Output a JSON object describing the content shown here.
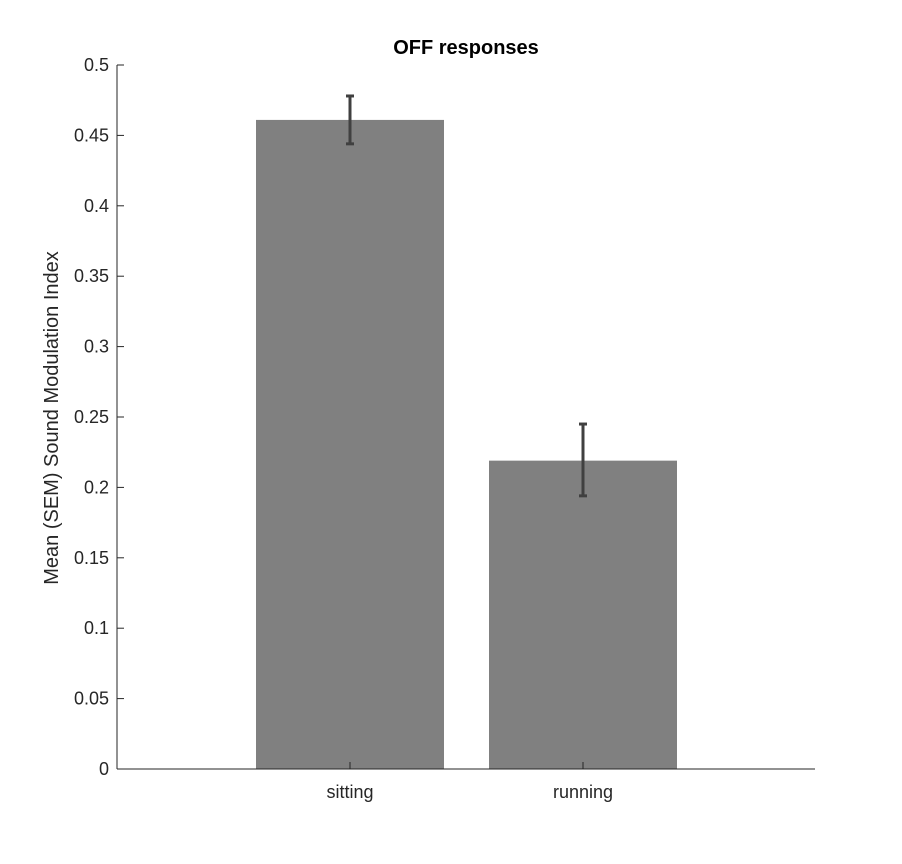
{
  "chart_data": {
    "type": "bar",
    "title": "OFF responses",
    "ylabel": "Mean (SEM) Sound Modulation Index",
    "xlabel": "",
    "categories": [
      "sitting",
      "running"
    ],
    "values": [
      0.461,
      0.219
    ],
    "error_low": [
      0.444,
      0.194
    ],
    "error_high": [
      0.478,
      0.245
    ],
    "ylim": [
      0,
      0.5
    ],
    "yticks": [
      "0",
      "0.05",
      "0.1",
      "0.15",
      "0.2",
      "0.25",
      "0.3",
      "0.35",
      "0.4",
      "0.45",
      "0.5"
    ],
    "bar_color": "#808080",
    "error_color": "#404040",
    "grid": false,
    "legend": "none"
  }
}
